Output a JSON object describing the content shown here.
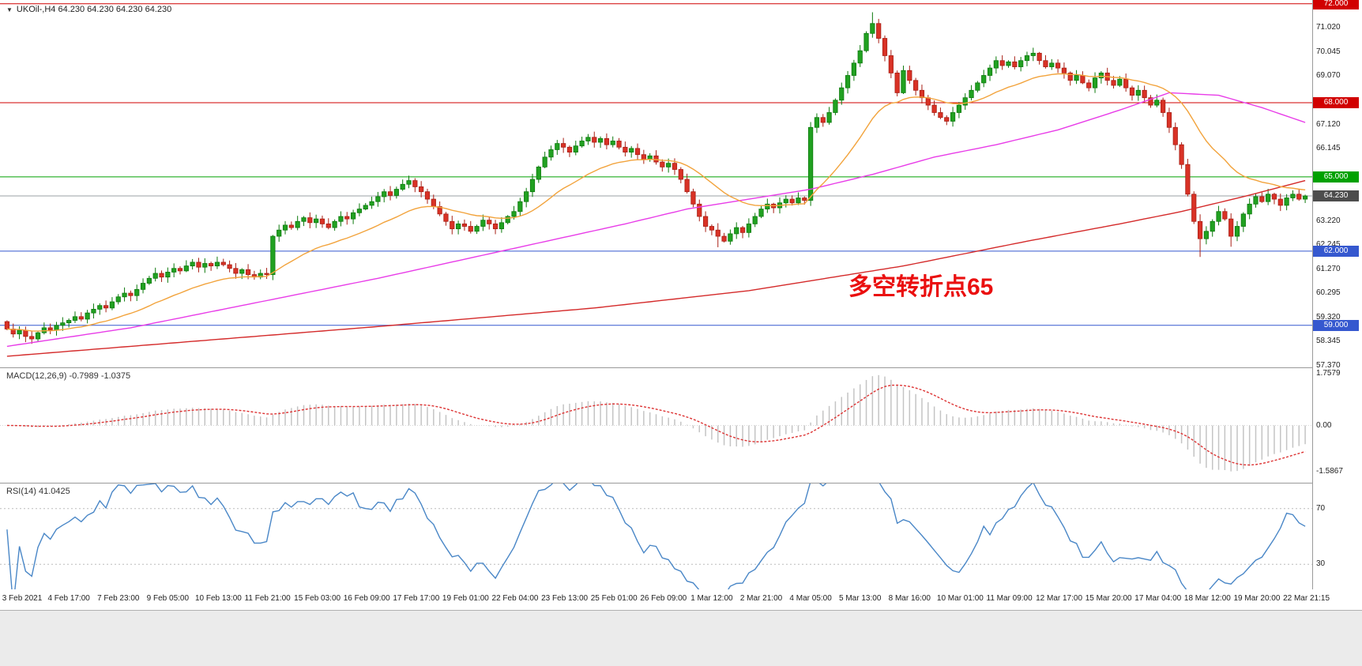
{
  "header": {
    "dropdown_icon": "▼",
    "symbol_line": "UKOil-,H4 64.230 64.230 64.230 64.230"
  },
  "colors": {
    "bull": "#21a121",
    "bull_stroke": "#0c7a0c",
    "bear": "#d93226",
    "bear_stroke": "#a81f15",
    "ma_fast": "#f2a33c",
    "ma_mid": "#e83ce8",
    "ma_slow": "#d42a2a",
    "current_line": "#9aa0a6",
    "macd_hist": "#c4c4c4",
    "macd_signal": "#dd3333",
    "rsi_line": "#4a87c7",
    "rsi_level": "#bbbbbb",
    "annotation": "#ea0f0f"
  },
  "chart_data": [
    {
      "type": "candlestick",
      "symbol": "UKOil-",
      "timeframe": "H4",
      "current_price": "64.230",
      "note": "closes estimated from chart pixels; open = previous close",
      "first_open": 59.15,
      "closes": [
        58.85,
        58.65,
        58.8,
        58.55,
        58.45,
        58.7,
        58.9,
        58.8,
        59.0,
        59.1,
        59.2,
        59.35,
        59.25,
        59.5,
        59.65,
        59.8,
        59.7,
        59.95,
        60.15,
        60.3,
        60.2,
        60.45,
        60.7,
        60.9,
        61.1,
        60.95,
        61.15,
        61.3,
        61.2,
        61.4,
        61.55,
        61.35,
        61.5,
        61.4,
        61.55,
        61.45,
        61.3,
        61.1,
        61.25,
        61.05,
        60.95,
        61.1,
        61.05,
        62.6,
        62.85,
        63.05,
        62.95,
        63.2,
        63.35,
        63.15,
        63.3,
        63.1,
        62.95,
        63.2,
        63.4,
        63.3,
        63.55,
        63.7,
        63.85,
        64.0,
        64.2,
        64.4,
        64.25,
        64.5,
        64.7,
        64.85,
        64.6,
        64.4,
        64.1,
        63.8,
        63.5,
        63.2,
        62.9,
        63.1,
        63.0,
        62.8,
        63.0,
        63.25,
        63.1,
        62.9,
        63.15,
        63.4,
        63.6,
        64.0,
        64.4,
        64.9,
        65.4,
        65.8,
        66.1,
        66.35,
        66.2,
        66.0,
        66.25,
        66.45,
        66.6,
        66.4,
        66.55,
        66.3,
        66.45,
        66.2,
        66.0,
        66.15,
        65.9,
        65.7,
        65.85,
        65.6,
        65.4,
        65.55,
        65.3,
        64.9,
        64.4,
        63.9,
        63.4,
        63.0,
        62.85,
        62.6,
        62.4,
        62.7,
        62.95,
        62.75,
        63.1,
        63.4,
        63.7,
        63.9,
        63.75,
        63.95,
        64.1,
        63.95,
        64.15,
        64.05,
        67.0,
        67.4,
        67.2,
        67.6,
        68.1,
        68.6,
        69.1,
        69.6,
        70.1,
        70.8,
        71.2,
        70.6,
        69.9,
        69.2,
        68.4,
        69.3,
        68.9,
        68.5,
        68.2,
        67.9,
        67.6,
        67.4,
        67.25,
        67.6,
        67.9,
        68.2,
        68.5,
        68.8,
        69.1,
        69.4,
        69.7,
        69.5,
        69.65,
        69.45,
        69.7,
        69.9,
        70.0,
        69.7,
        69.45,
        69.6,
        69.4,
        69.2,
        68.9,
        69.1,
        68.8,
        68.6,
        69.0,
        69.2,
        68.9,
        68.7,
        68.95,
        68.6,
        68.3,
        68.5,
        68.2,
        67.9,
        68.1,
        67.6,
        67.0,
        66.3,
        65.5,
        64.3,
        63.2,
        62.5,
        62.8,
        63.2,
        63.6,
        63.3,
        62.6,
        63.0,
        63.5,
        63.9,
        64.2,
        64.0,
        64.3,
        64.1,
        63.85,
        64.15,
        64.3,
        64.1,
        64.23
      ],
      "wick_overrides": {
        "115": [
          0.05,
          0.3
        ],
        "140": [
          0.25,
          0.05
        ],
        "193": [
          0.1,
          0.55
        ],
        "198": [
          0.05,
          0.3
        ]
      },
      "y_axis": {
        "min": 57.3,
        "max": 72.15,
        "ticks": [
          {
            "text": "71.020",
            "price": 71.02
          },
          {
            "text": "70.045",
            "price": 70.045
          },
          {
            "text": "69.070",
            "price": 69.07
          },
          {
            "text": "67.120",
            "price": 67.12
          },
          {
            "text": "66.145",
            "price": 66.145
          },
          {
            "text": "63.220",
            "price": 63.22
          },
          {
            "text": "62.245",
            "price": 62.245
          },
          {
            "text": "61.270",
            "price": 61.27
          },
          {
            "text": "60.295",
            "price": 60.295
          },
          {
            "text": "59.320",
            "price": 59.32
          },
          {
            "text": "58.345",
            "price": 58.345
          },
          {
            "text": "57.370",
            "price": 57.37
          }
        ]
      },
      "hlines": [
        {
          "price": 72.0,
          "color": "#d10000"
        },
        {
          "price": 68.0,
          "color": "#d10000"
        },
        {
          "price": 65.0,
          "color": "#00a100"
        },
        {
          "price": 64.23,
          "color": "#9aa0a6"
        },
        {
          "price": 62.0,
          "color": "#3558cf"
        },
        {
          "price": 59.0,
          "color": "#3558cf"
        }
      ],
      "price_badges": [
        {
          "label": "72.000",
          "price": 72.0,
          "bg": "#d10000"
        },
        {
          "label": "68.000",
          "price": 68.0,
          "bg": "#d10000"
        },
        {
          "label": "65.000",
          "price": 65.0,
          "bg": "#00a100"
        },
        {
          "label": "64.230",
          "price": 64.23,
          "bg": "#4d4d4d"
        },
        {
          "label": "62.000",
          "price": 62.0,
          "bg": "#3558cf"
        },
        {
          "label": "59.000",
          "price": 59.0,
          "bg": "#3558cf"
        }
      ],
      "ma_lines": [
        {
          "name": "ma-fast-orange",
          "method": "ema",
          "period": 21
        },
        {
          "name": "ma-mid-magenta",
          "waypoints": [
            [
              0,
              58.15
            ],
            [
              20,
              58.9
            ],
            [
              40,
              59.9
            ],
            [
              60,
              60.9
            ],
            [
              80,
              62.0
            ],
            [
              100,
              63.1
            ],
            [
              110,
              63.7
            ],
            [
              120,
              64.1
            ],
            [
              130,
              64.5
            ],
            [
              140,
              65.1
            ],
            [
              150,
              65.8
            ],
            [
              160,
              66.3
            ],
            [
              170,
              66.9
            ],
            [
              180,
              67.7
            ],
            [
              188,
              68.4
            ],
            [
              196,
              68.3
            ],
            [
              203,
              67.8
            ],
            [
              210,
              67.2
            ]
          ]
        },
        {
          "name": "ma-slow-red",
          "waypoints": [
            [
              0,
              57.75
            ],
            [
              30,
              58.35
            ],
            [
              60,
              58.95
            ],
            [
              95,
              59.7
            ],
            [
              120,
              60.4
            ],
            [
              145,
              61.4
            ],
            [
              165,
              62.4
            ],
            [
              180,
              63.1
            ],
            [
              190,
              63.6
            ],
            [
              200,
              64.2
            ],
            [
              210,
              64.85
            ]
          ]
        }
      ],
      "annotation": {
        "text": "多空转折点65"
      },
      "x_labels": [
        "3 Feb 2021",
        "4 Feb 17:00",
        "7 Feb 23:00",
        "9 Feb 05:00",
        "10 Feb 13:00",
        "11 Feb 21:00",
        "15 Feb 03:00",
        "16 Feb 09:00",
        "17 Feb 17:00",
        "19 Feb 01:00",
        "22 Feb 04:00",
        "23 Feb 13:00",
        "25 Feb 01:00",
        "26 Feb 09:00",
        "1 Mar 12:00",
        "2 Mar 21:00",
        "4 Mar 05:00",
        "5 Mar 13:00",
        "8 Mar 16:00",
        "10 Mar 01:00",
        "11 Mar 09:00",
        "12 Mar 17:00",
        "15 Mar 20:00",
        "17 Mar 04:00",
        "18 Mar 12:00",
        "19 Mar 20:00",
        "22 Mar 21:15"
      ],
      "x_label_first_index": 2,
      "x_label_step": 8
    },
    {
      "type": "macd",
      "label": "MACD(12,26,9) -0.7989 -1.0375",
      "params": [
        12,
        26,
        9
      ],
      "values_text": [
        "-0.7989",
        "-1.0375"
      ],
      "y_labels": [
        {
          "text": "1.7579",
          "value": 1.7579
        },
        {
          "text": "0.00",
          "value": 0.0
        },
        {
          "text": "-1.5867",
          "value": -1.5867
        }
      ],
      "range": [
        -1.95,
        1.95
      ]
    },
    {
      "type": "rsi",
      "label": "RSI(14) 41.0425",
      "period": 14,
      "value": "41.0425",
      "levels": [
        70,
        30
      ],
      "y_labels": [
        {
          "text": "70",
          "value": 70
        },
        {
          "text": "30",
          "value": 30
        }
      ],
      "range": [
        12,
        88
      ]
    }
  ]
}
